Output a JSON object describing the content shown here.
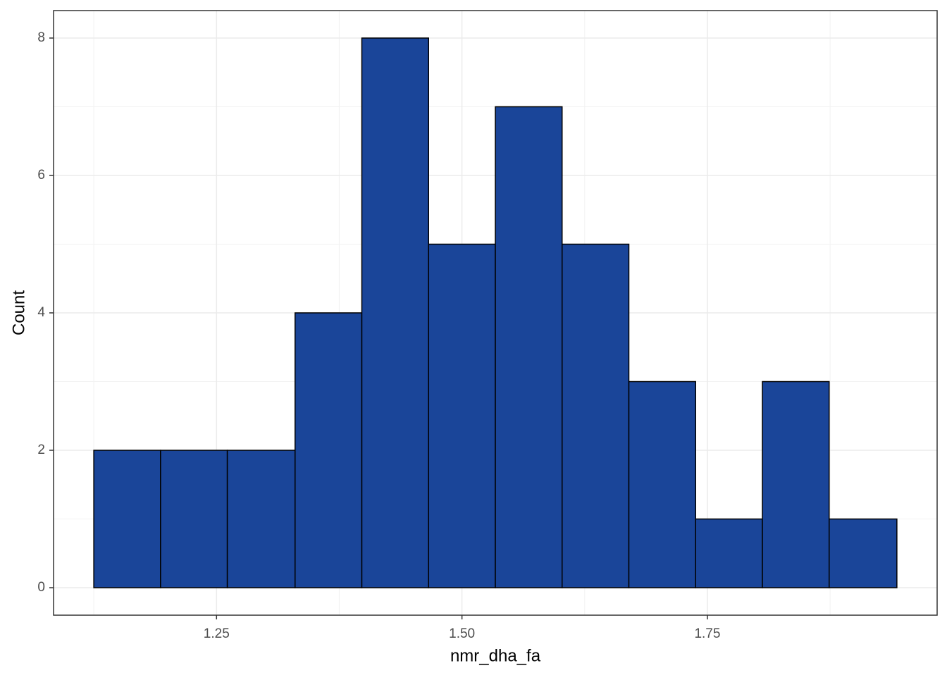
{
  "chart_data": {
    "type": "histogram",
    "x_label": "nmr_dha_fa",
    "y_label": "Count",
    "bins": [
      1.125,
      1.193,
      1.261,
      1.33,
      1.398,
      1.466,
      1.534,
      1.602,
      1.67,
      1.738,
      1.806,
      1.874,
      1.943
    ],
    "values": [
      2,
      2,
      2,
      4,
      8,
      5,
      7,
      5,
      3,
      1,
      3,
      1
    ],
    "color": "#1a4599",
    "edge_color": "#000000",
    "xlim": [
      1.084,
      1.984
    ],
    "ylim": [
      -0.4,
      8.4
    ],
    "xticks": [
      {
        "value": 1.25,
        "label": "1.25"
      },
      {
        "value": 1.5,
        "label": "1.50"
      },
      {
        "value": 1.75,
        "label": "1.75"
      }
    ],
    "yticks": [
      0,
      2,
      4,
      6,
      8
    ],
    "grid": true,
    "minor_grid": true
  }
}
